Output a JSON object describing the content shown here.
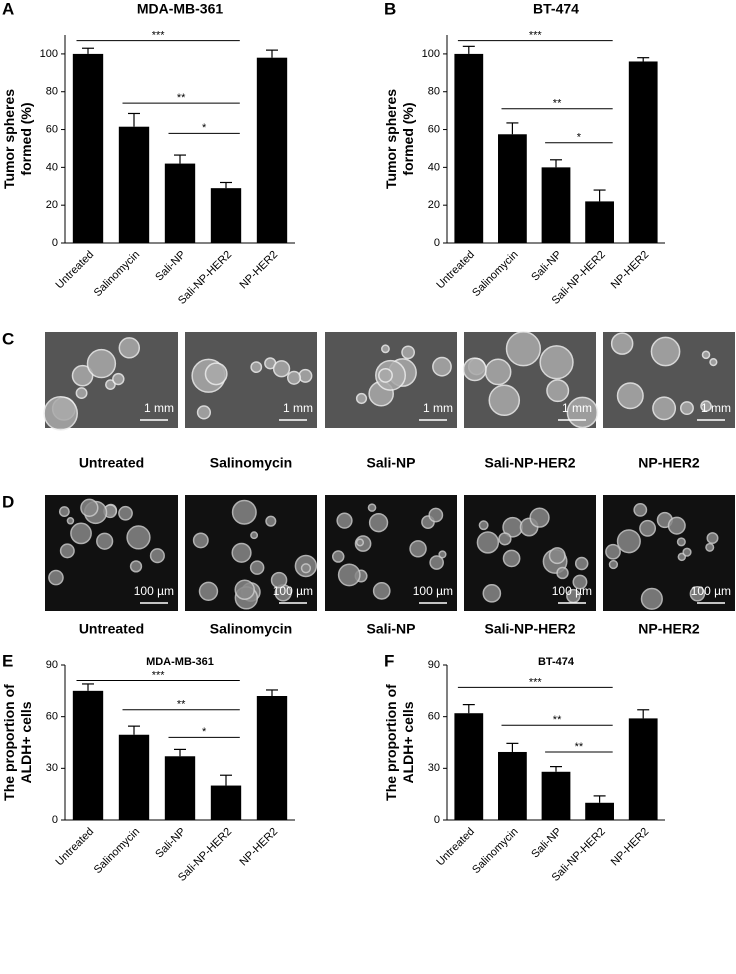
{
  "chart_data": [
    {
      "type": "bar",
      "panel": "A",
      "title": "MDA-MB-361",
      "ylabel": [
        "Tumor spheres",
        "formed (%)"
      ],
      "categories": [
        "Untreated",
        "Salinomycin",
        "Sali-NP",
        "Sali-NP-HER2",
        "NP-HER2"
      ],
      "values": [
        100,
        61.5,
        42,
        29,
        98
      ],
      "errors": [
        3,
        7,
        4.5,
        3,
        4
      ],
      "color": "#000000",
      "ylim": [
        0,
        110
      ],
      "yticks": [
        0,
        20,
        40,
        60,
        80,
        100
      ],
      "annotations": [
        {
          "label": "***",
          "between": [
            "Untreated",
            "Sali-NP-HER2"
          ],
          "y": 107
        },
        {
          "label": "**",
          "between": [
            "Salinomycin",
            "Sali-NP-HER2"
          ],
          "y": 74
        },
        {
          "label": "*",
          "between": [
            "Sali-NP",
            "Sali-NP-HER2"
          ],
          "y": 58
        }
      ]
    },
    {
      "type": "bar",
      "panel": "B",
      "title": "BT-474",
      "ylabel": [
        "Tumor spheres",
        "formed (%)"
      ],
      "categories": [
        "Untreated",
        "Salinomycin",
        "Sali-NP",
        "Sali-NP-HER2",
        "NP-HER2"
      ],
      "values": [
        100,
        57.5,
        40,
        22,
        96
      ],
      "errors": [
        4,
        6,
        4,
        6,
        2
      ],
      "color": "#000000",
      "ylim": [
        0,
        110
      ],
      "yticks": [
        0,
        20,
        40,
        60,
        80,
        100
      ],
      "annotations": [
        {
          "label": "***",
          "between": [
            "Untreated",
            "Sali-NP-HER2"
          ],
          "y": 107
        },
        {
          "label": "**",
          "between": [
            "Salinomycin",
            "Sali-NP-HER2"
          ],
          "y": 71
        },
        {
          "label": "*",
          "between": [
            "Sali-NP",
            "Sali-NP-HER2"
          ],
          "y": 53
        }
      ]
    },
    {
      "type": "bar",
      "panel": "E",
      "title": "MDA-MB-361",
      "ylabel": [
        "The proportion of",
        "ALDH+ cells"
      ],
      "categories": [
        "Untreated",
        "Salinomycin",
        "Sali-NP",
        "Sali-NP-HER2",
        "NP-HER2"
      ],
      "values": [
        75,
        49.5,
        37,
        20,
        72
      ],
      "errors": [
        4,
        5,
        4,
        6,
        3.5
      ],
      "color": "#000000",
      "ylim": [
        0,
        90
      ],
      "yticks": [
        0,
        30,
        60,
        90
      ],
      "annotations": [
        {
          "label": "***",
          "between": [
            "Untreated",
            "Sali-NP-HER2"
          ],
          "y": 81
        },
        {
          "label": "**",
          "between": [
            "Salinomycin",
            "Sali-NP-HER2"
          ],
          "y": 64
        },
        {
          "label": "*",
          "between": [
            "Sali-NP",
            "Sali-NP-HER2"
          ],
          "y": 48
        }
      ]
    },
    {
      "type": "bar",
      "panel": "F",
      "title": "BT-474",
      "ylabel": [
        "The proportion of",
        "ALDH+ cells"
      ],
      "categories": [
        "Untreated",
        "Salinomycin",
        "Sali-NP",
        "Sali-NP-HER2",
        "NP-HER2"
      ],
      "values": [
        62,
        39.5,
        28,
        10,
        59
      ],
      "errors": [
        5,
        5,
        3,
        4,
        5
      ],
      "color": "#000000",
      "ylim": [
        0,
        90
      ],
      "yticks": [
        0,
        30,
        60,
        90
      ],
      "annotations": [
        {
          "label": "***",
          "between": [
            "Untreated",
            "Sali-NP-HER2"
          ],
          "y": 77
        },
        {
          "label": "**",
          "between": [
            "Salinomycin",
            "Sali-NP-HER2"
          ],
          "y": 55
        },
        {
          "label": "**",
          "between": [
            "Sali-NP",
            "Sali-NP-HER2"
          ],
          "y": 39.5
        }
      ]
    }
  ],
  "image_rows": [
    {
      "panel": "C",
      "scale_bar": "1 mm",
      "captions": [
        "Untreated",
        "Salinomycin",
        "Sali-NP",
        "Sali-NP-HER2",
        "NP-HER2"
      ]
    },
    {
      "panel": "D",
      "scale_bar": "100 µm",
      "captions": [
        "Untreated",
        "Salinomycin",
        "Sali-NP",
        "Sali-NP-HER2",
        "NP-HER2"
      ]
    }
  ]
}
